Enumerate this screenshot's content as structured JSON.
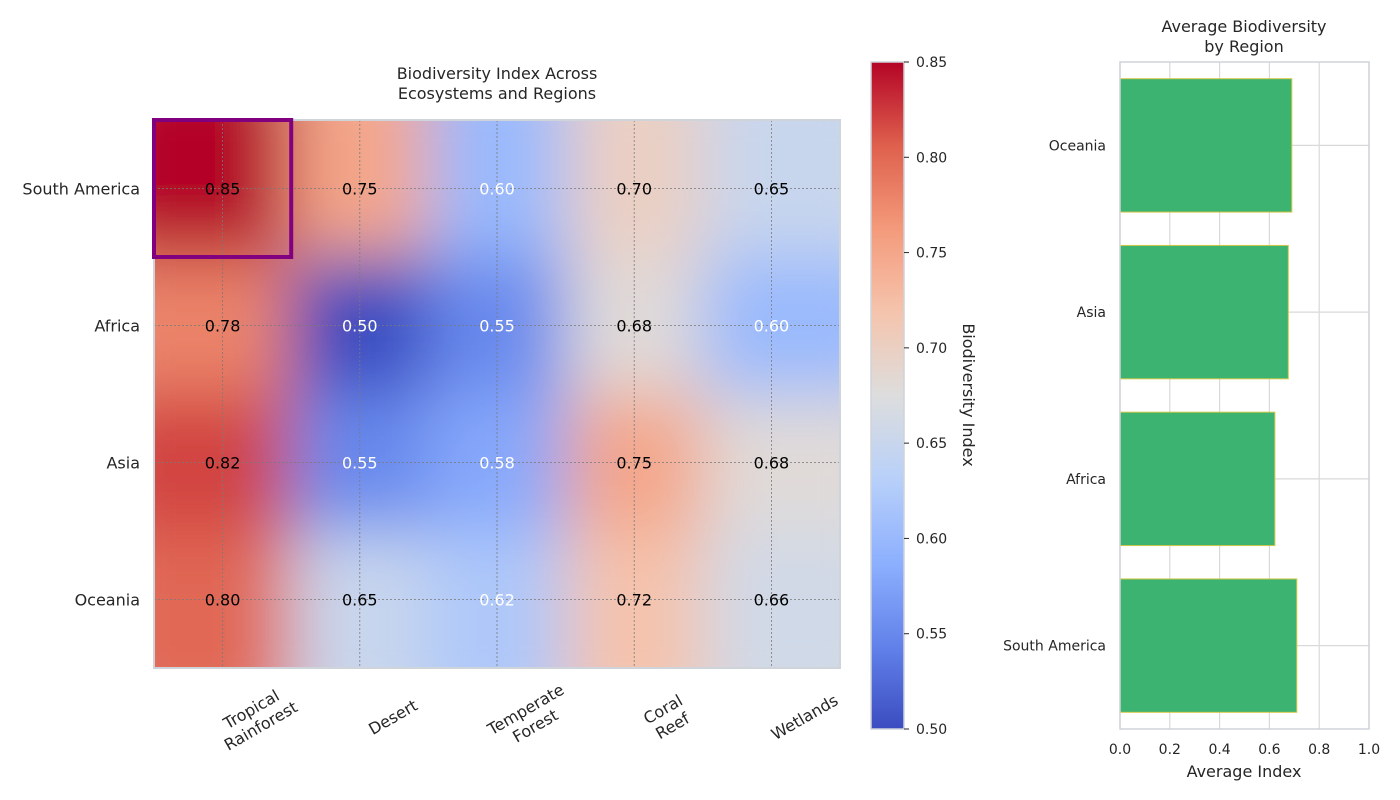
{
  "chart_data": [
    {
      "type": "heatmap",
      "title": "Biodiversity Index Across\nEcosystems and Regions",
      "rows": [
        "South America",
        "Africa",
        "Asia",
        "Oceania"
      ],
      "columns": [
        "Tropical\nRainforest",
        "Desert",
        "Temperate\nForest",
        "Coral\nReef",
        "Wetlands"
      ],
      "values": [
        [
          0.85,
          0.75,
          0.6,
          0.7,
          0.65
        ],
        [
          0.78,
          0.5,
          0.55,
          0.68,
          0.6
        ],
        [
          0.82,
          0.55,
          0.58,
          0.75,
          0.68
        ],
        [
          0.8,
          0.65,
          0.62,
          0.72,
          0.66
        ]
      ],
      "value_format": "2 decimals",
      "colormap": "coolwarm",
      "colorbar": {
        "label": "Biodiversity Index",
        "range": [
          0.5,
          0.85
        ],
        "ticks": [
          0.5,
          0.55,
          0.6,
          0.65,
          0.7,
          0.75,
          0.8,
          0.85
        ]
      },
      "highlight": {
        "row": "South America",
        "column": "Tropical\nRainforest",
        "color": "#800080"
      },
      "grid": true
    },
    {
      "type": "bar",
      "orientation": "horizontal",
      "title": "Average Biodiversity\nby Region",
      "categories": [
        "South America",
        "Africa",
        "Asia",
        "Oceania"
      ],
      "values": [
        0.71,
        0.622,
        0.676,
        0.69
      ],
      "xlabel": "Average Index",
      "xlim": [
        0,
        1.0
      ],
      "xticks": [
        0.0,
        0.2,
        0.4,
        0.6,
        0.8,
        1.0
      ],
      "bar_color": "#3cb371",
      "edge_color": "#d4c84a",
      "grid": true
    }
  ]
}
